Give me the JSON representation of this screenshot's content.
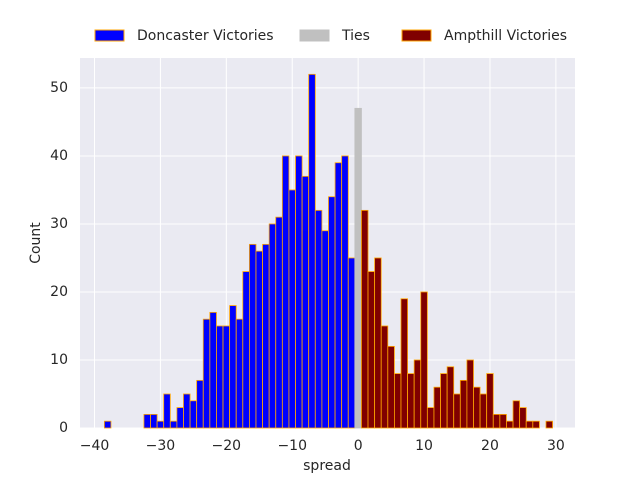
{
  "chart_data": {
    "type": "histogram",
    "xlabel": "spread",
    "ylabel": "Count",
    "xlim": [
      -42.2,
      32.9
    ],
    "ylim": [
      0,
      54.4
    ],
    "xticks": [
      {
        "value": -40,
        "label": "−40"
      },
      {
        "value": -30,
        "label": "−30"
      },
      {
        "value": -20,
        "label": "−20"
      },
      {
        "value": -10,
        "label": "−10"
      },
      0,
      10,
      20,
      30
    ],
    "yticks": [
      0,
      10,
      20,
      30,
      40,
      50
    ],
    "grid": true,
    "legend": "top",
    "series": [
      {
        "name": "Doncaster Victories",
        "color": "#0000ff",
        "edgecolor": "#ffa500",
        "bins": [
          -38.5,
          -37.5,
          -36.5,
          -35.5,
          -34.5,
          -33.5,
          -32.5,
          -31.5,
          -30.5,
          -29.5,
          -28.5,
          -27.5,
          -26.5,
          -25.5,
          -24.5,
          -23.5,
          -22.5,
          -21.5,
          -20.5,
          -19.5,
          -18.5,
          -17.5,
          -16.5,
          -15.5,
          -14.5,
          -13.5,
          -12.5,
          -11.5,
          -10.5,
          -9.5,
          -8.5,
          -7.5,
          -6.5,
          -5.5,
          -4.5,
          -3.5,
          -2.5,
          -1.5,
          -0.5
        ],
        "values": [
          1,
          0,
          0,
          0,
          0,
          0,
          2,
          2,
          1,
          5,
          1,
          3,
          5,
          4,
          7,
          16,
          17,
          15,
          15,
          18,
          16,
          23,
          27,
          26,
          27,
          30,
          31,
          40,
          35,
          40,
          37,
          52,
          32,
          29,
          34,
          39,
          40,
          25
        ]
      },
      {
        "name": "Ties",
        "color": "#c0c0c0",
        "edgecolor": "#c0c0c0",
        "bins": [
          -0.5,
          0.5
        ],
        "values": [
          47
        ]
      },
      {
        "name": "Ampthill Victories",
        "color": "#800000",
        "edgecolor": "#ffa500",
        "bins": [
          0.5,
          1.5,
          2.5,
          3.5,
          4.5,
          5.5,
          6.5,
          7.5,
          8.5,
          9.5,
          10.5,
          11.5,
          12.5,
          13.5,
          14.5,
          15.5,
          16.5,
          17.5,
          18.5,
          19.5,
          20.5,
          21.5,
          22.5,
          23.5,
          24.5,
          25.5,
          26.5,
          27.5,
          28.5,
          29.5
        ],
        "values": [
          32,
          23,
          25,
          15,
          12,
          8,
          19,
          8,
          10,
          20,
          3,
          6,
          8,
          9,
          5,
          7,
          10,
          6,
          5,
          8,
          2,
          2,
          1,
          4,
          3,
          1,
          1,
          0,
          1
        ]
      }
    ]
  }
}
